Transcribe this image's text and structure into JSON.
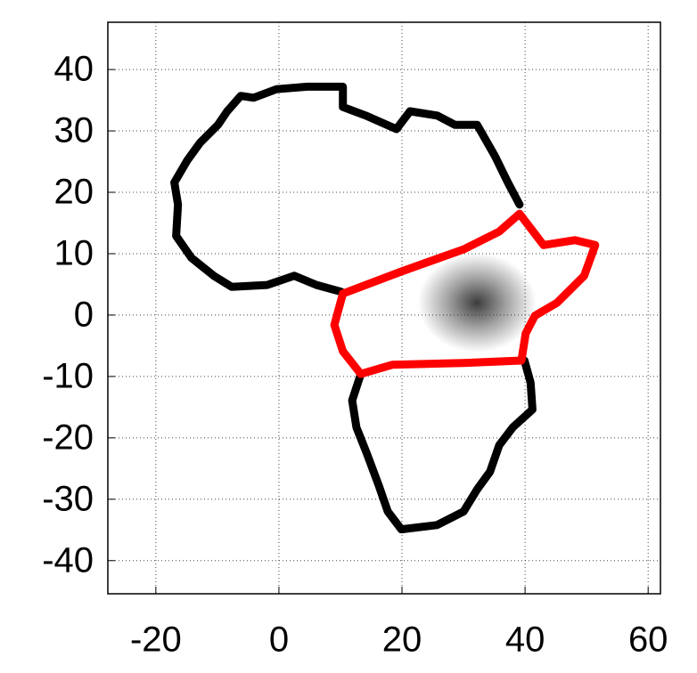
{
  "chart_data": {
    "type": "line",
    "xlim": [
      -27.8,
      62
    ],
    "ylim": [
      -45.4,
      47.7
    ],
    "xticks": [
      -20,
      0,
      20,
      40,
      60
    ],
    "yticks": [
      -40,
      -30,
      -20,
      -10,
      0,
      10,
      20,
      30,
      40
    ],
    "grid": true,
    "density": {
      "x": 32.2,
      "y": 2.0,
      "spread": 6,
      "color": "#333333"
    },
    "series": [
      {
        "color": "#000000",
        "x": [
          10.1,
          6.1,
          2.5,
          -1.9,
          -7.7,
          -10.6,
          -14.2,
          -16.7,
          -16.4,
          -17.0,
          -14.9,
          -12.8,
          -9.9,
          -8.4,
          -6.2,
          -4.1,
          -0.4,
          4.6,
          10.4,
          10.4,
          14.1,
          19.1,
          21.3,
          25.7,
          28.6,
          32.2,
          35.1,
          37.2,
          39.1,
          null,
          39.9,
          40.9,
          41.2,
          38.0,
          35.8,
          34.3,
          32.2,
          30.0,
          25.7,
          19.9,
          17.7,
          16.2,
          14.3,
          12.6,
          11.9,
          13.3
        ],
        "y": [
          3.8,
          4.9,
          6.4,
          4.9,
          4.6,
          6.4,
          9.3,
          12.9,
          18.0,
          21.6,
          25.2,
          28.1,
          31.0,
          33.2,
          35.7,
          35.4,
          36.8,
          37.2,
          37.2,
          33.9,
          32.5,
          30.3,
          33.2,
          32.5,
          31.0,
          31.0,
          25.9,
          21.6,
          18.0,
          null,
          -7.4,
          -11.0,
          -15.4,
          -18.3,
          -21.2,
          -25.5,
          -28.4,
          -32.0,
          -34.2,
          -34.9,
          -32.0,
          -27.7,
          -22.6,
          -18.3,
          -13.9,
          -9.6
        ]
      },
      {
        "color": "#ff0000",
        "x": [
          10.4,
          19.9,
          30.0,
          35.8,
          39.1,
          43.0,
          48.1,
          51.4,
          49.6,
          45.2,
          41.6,
          40.1,
          39.4,
          30.0,
          18.4,
          13.3,
          10.4,
          9.0,
          10.4
        ],
        "y": [
          3.5,
          7.1,
          10.7,
          13.6,
          16.5,
          11.4,
          12.2,
          11.4,
          6.4,
          2.0,
          -0.1,
          -3.0,
          -7.4,
          -7.8,
          -8.1,
          -9.6,
          -5.9,
          -1.6,
          3.5
        ]
      }
    ]
  }
}
